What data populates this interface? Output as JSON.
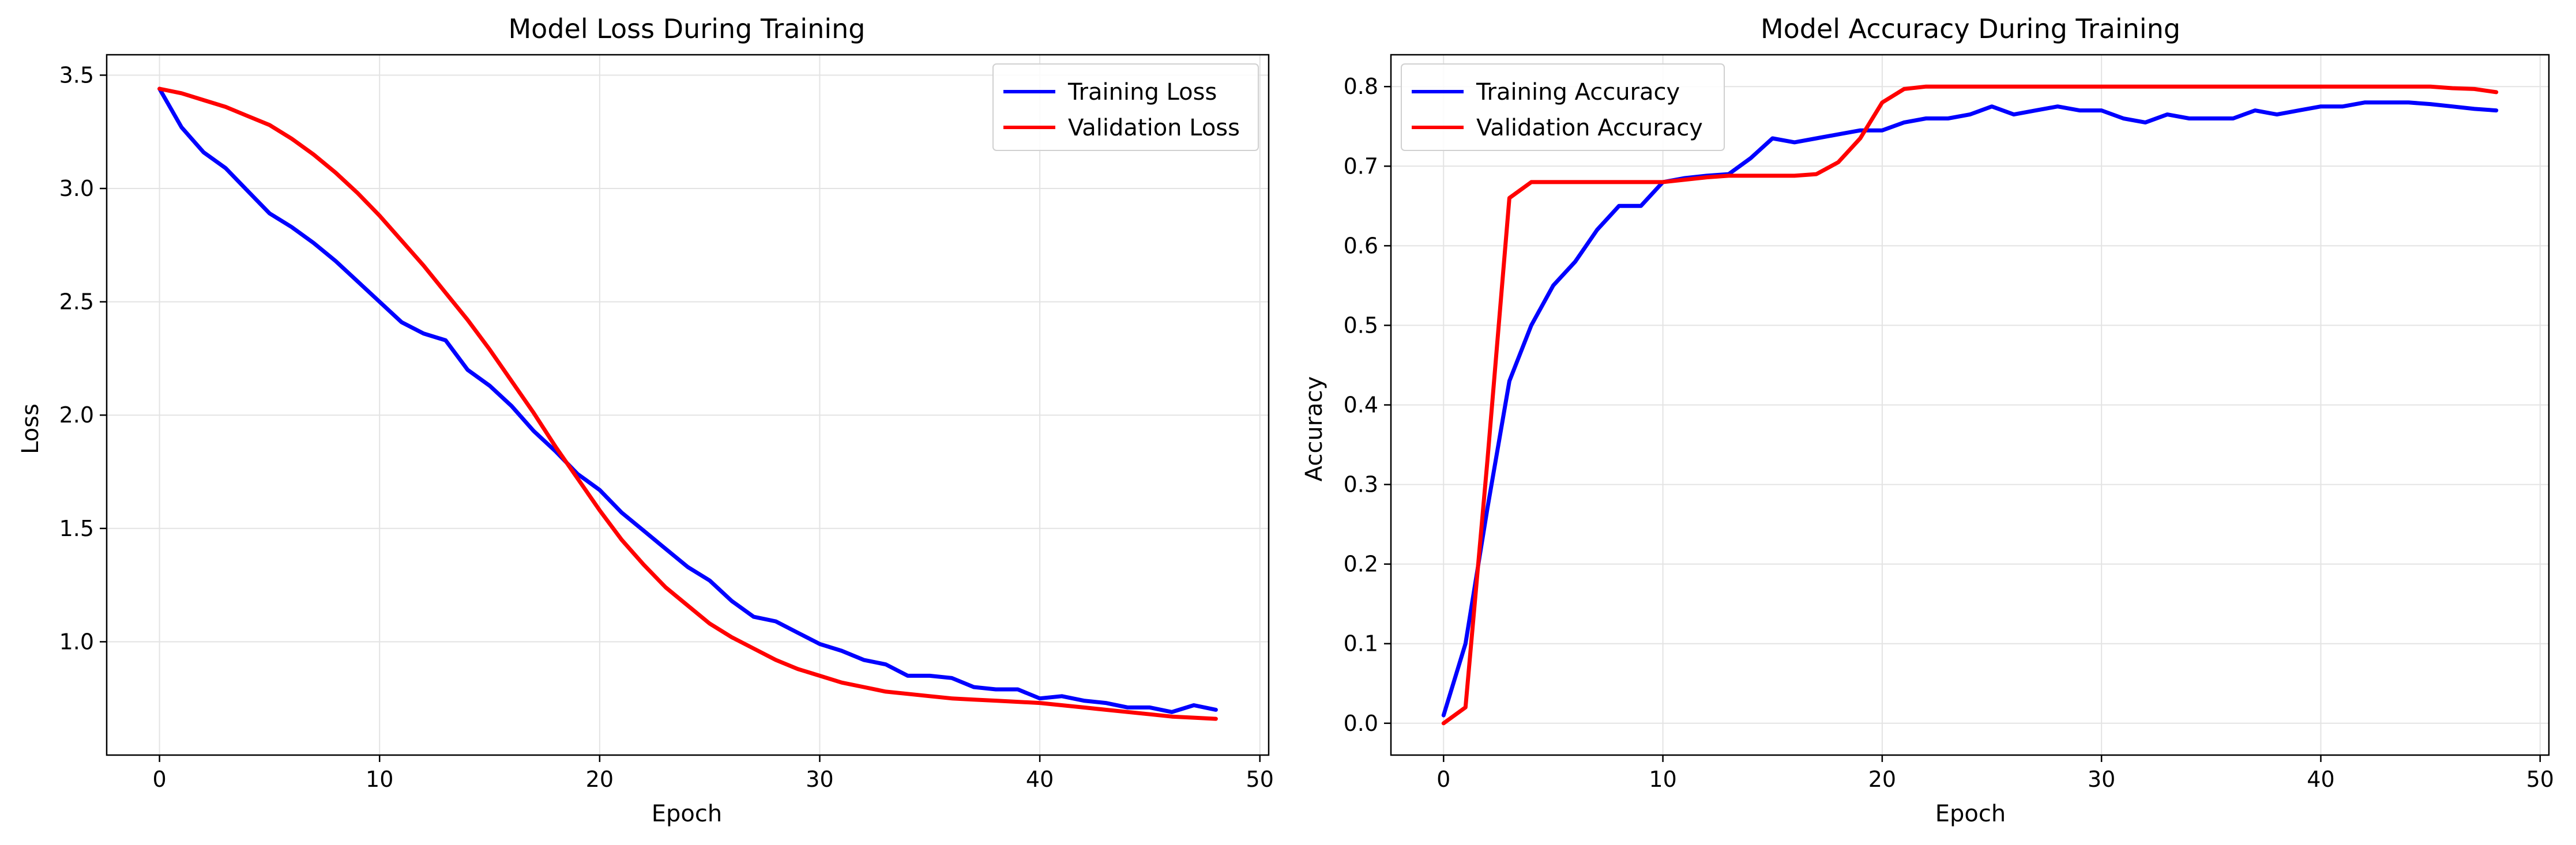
{
  "chart_data": [
    {
      "type": "line",
      "title": "Model Loss During Training",
      "xlabel": "Epoch",
      "ylabel": "Loss",
      "xlim": [
        -2.4,
        50.4
      ],
      "ylim": [
        0.5,
        3.59
      ],
      "xticks": [
        0,
        10,
        20,
        30,
        40,
        50
      ],
      "yticks": [
        1.0,
        1.5,
        2.0,
        2.5,
        3.0,
        3.5
      ],
      "grid": true,
      "legend_position": "top-right",
      "series": [
        {
          "name": "Training Loss",
          "color": "#0000ff",
          "x": [
            0,
            1,
            2,
            3,
            4,
            5,
            6,
            7,
            8,
            9,
            10,
            11,
            12,
            13,
            14,
            15,
            16,
            17,
            18,
            19,
            20,
            21,
            22,
            23,
            24,
            25,
            26,
            27,
            28,
            29,
            30,
            31,
            32,
            33,
            34,
            35,
            36,
            37,
            38,
            39,
            40,
            41,
            42,
            43,
            44,
            45,
            46,
            47,
            48
          ],
          "values": [
            3.44,
            3.27,
            3.16,
            3.09,
            2.99,
            2.89,
            2.83,
            2.76,
            2.68,
            2.59,
            2.5,
            2.41,
            2.36,
            2.33,
            2.2,
            2.13,
            2.04,
            1.93,
            1.84,
            1.74,
            1.67,
            1.57,
            1.49,
            1.41,
            1.33,
            1.27,
            1.18,
            1.11,
            1.09,
            1.04,
            0.99,
            0.96,
            0.92,
            0.9,
            0.85,
            0.85,
            0.84,
            0.8,
            0.79,
            0.79,
            0.75,
            0.76,
            0.74,
            0.73,
            0.71,
            0.71,
            0.69,
            0.72,
            0.7
          ]
        },
        {
          "name": "Validation Loss",
          "color": "#ff0000",
          "x": [
            0,
            1,
            2,
            3,
            4,
            5,
            6,
            7,
            8,
            9,
            10,
            11,
            12,
            13,
            14,
            15,
            16,
            17,
            18,
            19,
            20,
            21,
            22,
            23,
            24,
            25,
            26,
            27,
            28,
            29,
            30,
            31,
            32,
            33,
            34,
            35,
            36,
            37,
            38,
            39,
            40,
            41,
            42,
            43,
            44,
            45,
            46,
            47,
            48
          ],
          "values": [
            3.44,
            3.42,
            3.39,
            3.36,
            3.32,
            3.28,
            3.22,
            3.15,
            3.07,
            2.98,
            2.88,
            2.77,
            2.66,
            2.54,
            2.42,
            2.29,
            2.15,
            2.01,
            1.86,
            1.72,
            1.58,
            1.45,
            1.34,
            1.24,
            1.16,
            1.08,
            1.02,
            0.97,
            0.92,
            0.88,
            0.85,
            0.82,
            0.8,
            0.78,
            0.77,
            0.76,
            0.75,
            0.745,
            0.74,
            0.735,
            0.73,
            0.72,
            0.71,
            0.7,
            0.69,
            0.68,
            0.67,
            0.665,
            0.66
          ]
        }
      ]
    },
    {
      "type": "line",
      "title": "Model Accuracy During Training",
      "xlabel": "Epoch",
      "ylabel": "Accuracy",
      "xlim": [
        -2.4,
        50.4
      ],
      "ylim": [
        -0.04,
        0.84
      ],
      "xticks": [
        0,
        10,
        20,
        30,
        40,
        50
      ],
      "yticks": [
        0.0,
        0.1,
        0.2,
        0.3,
        0.4,
        0.5,
        0.6,
        0.7,
        0.8
      ],
      "grid": true,
      "legend_position": "top-left",
      "series": [
        {
          "name": "Training Accuracy",
          "color": "#0000ff",
          "x": [
            0,
            1,
            2,
            3,
            4,
            5,
            6,
            7,
            8,
            9,
            10,
            11,
            12,
            13,
            14,
            15,
            16,
            17,
            18,
            19,
            20,
            21,
            22,
            23,
            24,
            25,
            26,
            27,
            28,
            29,
            30,
            31,
            32,
            33,
            34,
            35,
            36,
            37,
            38,
            39,
            40,
            41,
            42,
            43,
            44,
            45,
            46,
            47,
            48
          ],
          "values": [
            0.01,
            0.1,
            0.27,
            0.43,
            0.5,
            0.55,
            0.58,
            0.62,
            0.65,
            0.65,
            0.68,
            0.685,
            0.688,
            0.69,
            0.71,
            0.735,
            0.73,
            0.735,
            0.74,
            0.745,
            0.745,
            0.755,
            0.76,
            0.76,
            0.765,
            0.775,
            0.765,
            0.77,
            0.775,
            0.77,
            0.77,
            0.76,
            0.755,
            0.765,
            0.76,
            0.76,
            0.76,
            0.77,
            0.765,
            0.77,
            0.775,
            0.775,
            0.78,
            0.78,
            0.78,
            0.778,
            0.775,
            0.772,
            0.77
          ]
        },
        {
          "name": "Validation Accuracy",
          "color": "#ff0000",
          "x": [
            0,
            1,
            2,
            3,
            4,
            5,
            6,
            7,
            8,
            9,
            10,
            11,
            12,
            13,
            14,
            15,
            16,
            17,
            18,
            19,
            20,
            21,
            22,
            23,
            24,
            25,
            26,
            27,
            28,
            29,
            30,
            31,
            32,
            33,
            34,
            35,
            36,
            37,
            38,
            39,
            40,
            41,
            42,
            43,
            44,
            45,
            46,
            47,
            48
          ],
          "values": [
            0.0,
            0.02,
            0.33,
            0.66,
            0.68,
            0.68,
            0.68,
            0.68,
            0.68,
            0.68,
            0.68,
            0.683,
            0.686,
            0.688,
            0.688,
            0.688,
            0.688,
            0.69,
            0.705,
            0.735,
            0.78,
            0.797,
            0.8,
            0.8,
            0.8,
            0.8,
            0.8,
            0.8,
            0.8,
            0.8,
            0.8,
            0.8,
            0.8,
            0.8,
            0.8,
            0.8,
            0.8,
            0.8,
            0.8,
            0.8,
            0.8,
            0.8,
            0.8,
            0.8,
            0.8,
            0.8,
            0.798,
            0.797,
            0.793
          ]
        }
      ]
    }
  ]
}
